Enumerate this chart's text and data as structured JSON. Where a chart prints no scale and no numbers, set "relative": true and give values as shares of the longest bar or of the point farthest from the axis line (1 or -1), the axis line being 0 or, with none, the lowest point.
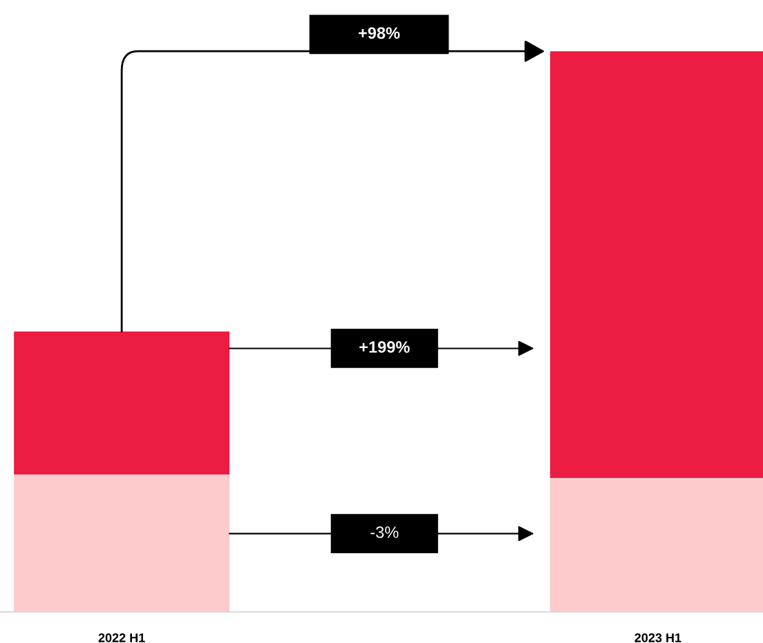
{
  "chart_data": {
    "type": "bar",
    "stacked": true,
    "relative": true,
    "categories": [
      "2022 H1",
      "2023 H1"
    ],
    "series": [
      {
        "color": "#fdcbcb",
        "values": [
          0.245,
          0.239
        ]
      },
      {
        "color": "#ed1c42",
        "values": [
          0.255,
          0.761
        ]
      }
    ],
    "annotations": [
      "+98%",
      "+199%",
      "-3%"
    ]
  }
}
